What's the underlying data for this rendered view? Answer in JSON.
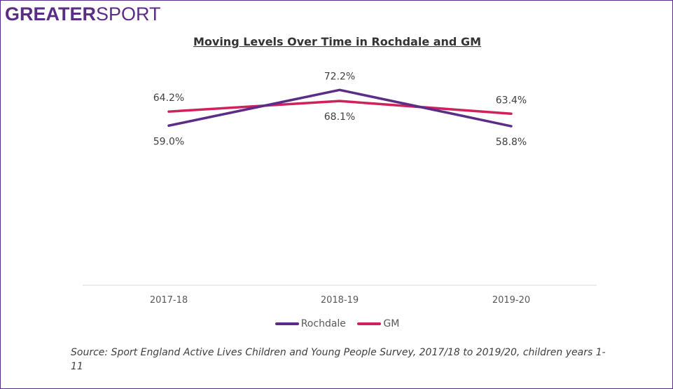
{
  "logo": {
    "bold": "GREATER",
    "light": "SPORT"
  },
  "chart_data": {
    "type": "line",
    "title": "Moving Levels Over Time in Rochdale and GM",
    "categories": [
      "2017-18",
      "2018-19",
      "2019-20"
    ],
    "series": [
      {
        "name": "Rochdale",
        "values": [
          59.0,
          72.2,
          58.8
        ],
        "labels": [
          "59.0%",
          "72.2%",
          "58.8%"
        ],
        "color": "#5b2d86"
      },
      {
        "name": "GM",
        "values": [
          64.2,
          68.1,
          63.4
        ],
        "labels": [
          "64.2%",
          "68.1%",
          "63.4%"
        ],
        "color": "#d0205e"
      }
    ],
    "ylim": [
      0,
      80
    ],
    "grid": false,
    "legend": "bottom"
  },
  "source": "Source: Sport England Active Lives Children and Young People Survey, 2017/18 to 2019/20, children years 1-11"
}
